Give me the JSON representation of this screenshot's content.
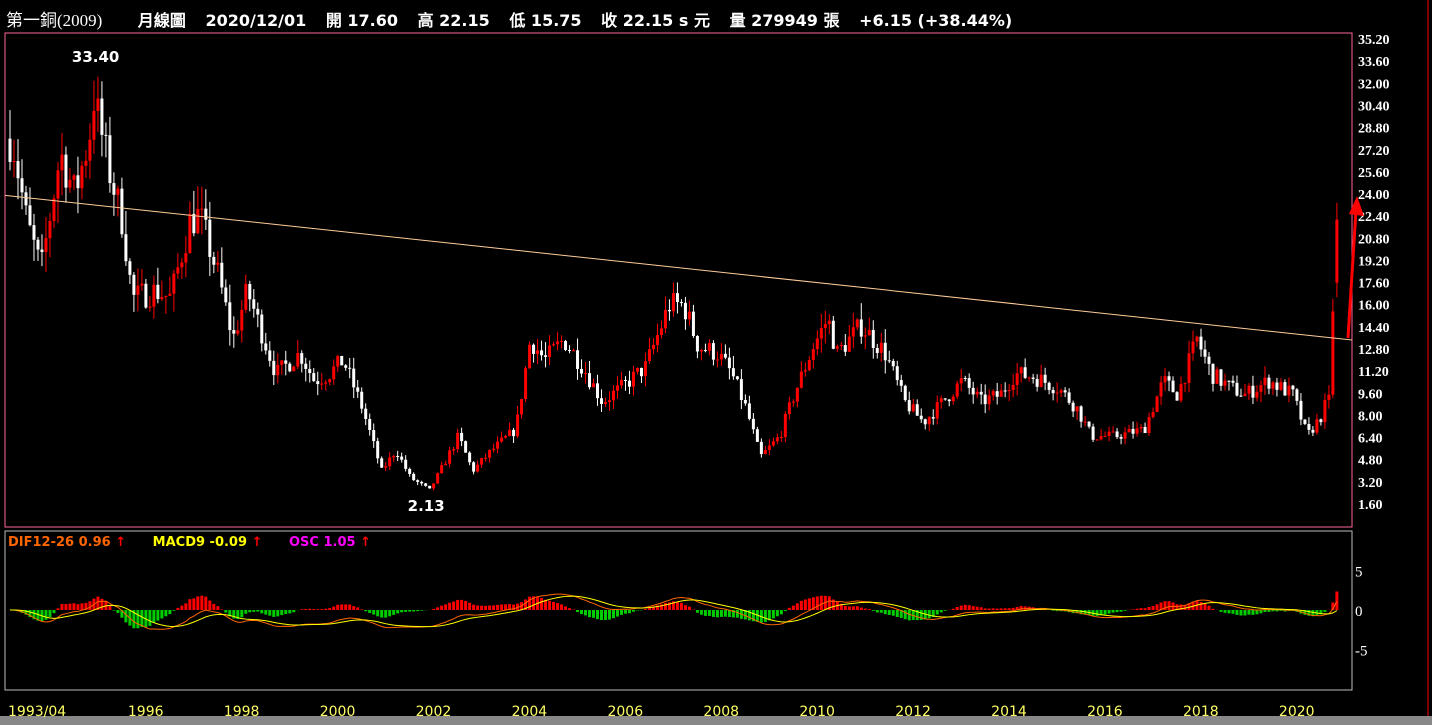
{
  "header": {
    "name": "第一銅(2009)",
    "period": "月線圖",
    "date": "2020/12/01",
    "open": "開 17.60",
    "high": "高 22.15",
    "low": "低 15.75",
    "close": "收 22.15 s 元",
    "volume": "量 279949 張",
    "change": "+6.15 (+38.44%)"
  },
  "macd_legend": {
    "dif": "DIF12-26 0.96",
    "macd": "MACD9 -0.09",
    "osc": "OSC 1.05",
    "arrow": "↑"
  },
  "colors": {
    "up": "#ff0000",
    "down": "#ffffff",
    "dif": "#ff6600",
    "macd": "#ffff00",
    "osc": "#ff00ff",
    "osc_pos": "#ff0000",
    "osc_neg": "#00cc00",
    "trendline": "#ffcc99",
    "frame": "#ff6699"
  },
  "chart_data": [
    {
      "type": "candlestick",
      "interval": "monthly",
      "x_start": "1993/04",
      "x_end": "2020/12",
      "x_tick_labels": [
        "1993/04",
        "1996",
        "1998",
        "2000",
        "2002",
        "2004",
        "2006",
        "2008",
        "2010",
        "2012",
        "2014",
        "2016",
        "2018",
        "2020"
      ],
      "y_tick_labels": [
        "35.20",
        "33.60",
        "32.00",
        "30.40",
        "28.80",
        "27.20",
        "25.60",
        "24.00",
        "22.40",
        "20.80",
        "19.20",
        "17.60",
        "16.00",
        "14.40",
        "12.80",
        "11.20",
        "9.60",
        "8.00",
        "6.40",
        "4.80",
        "3.20",
        "1.60"
      ],
      "ylim": [
        1.6,
        35.2
      ],
      "annotations": [
        {
          "label": "33.40",
          "date": "1995.0",
          "value": 33.4
        },
        {
          "label": "2.13",
          "date": "2002.0",
          "value": 2.13
        }
      ],
      "approx_close_path": [
        [
          1993.3,
          28
        ],
        [
          1993.6,
          22
        ],
        [
          1993.9,
          18.5
        ],
        [
          1994.3,
          27
        ],
        [
          1994.6,
          24
        ],
        [
          1994.9,
          28
        ],
        [
          1995.0,
          31
        ],
        [
          1995.3,
          26
        ],
        [
          1995.6,
          22
        ],
        [
          1995.8,
          16.5
        ],
        [
          1996.3,
          17
        ],
        [
          1996.6,
          16.5
        ],
        [
          1997.0,
          22
        ],
        [
          1997.2,
          22.5
        ],
        [
          1997.6,
          18
        ],
        [
          1997.9,
          13.5
        ],
        [
          1998.2,
          17
        ],
        [
          1998.5,
          14
        ],
        [
          1998.8,
          11
        ],
        [
          1999.3,
          12.5
        ],
        [
          1999.6,
          10.5
        ],
        [
          1999.9,
          11
        ],
        [
          2000.2,
          12
        ],
        [
          2000.6,
          8.5
        ],
        [
          2001.0,
          4
        ],
        [
          2001.3,
          5.5
        ],
        [
          2001.6,
          3.5
        ],
        [
          2002.0,
          2.6
        ],
        [
          2002.3,
          4.5
        ],
        [
          2002.6,
          6.5
        ],
        [
          2002.9,
          4
        ],
        [
          2003.3,
          5.5
        ],
        [
          2003.8,
          7
        ],
        [
          2004.1,
          13.5
        ],
        [
          2004.4,
          12
        ],
        [
          2004.8,
          13.5
        ],
        [
          2005.2,
          11.5
        ],
        [
          2005.6,
          9
        ],
        [
          2006.0,
          10
        ],
        [
          2006.5,
          11.5
        ],
        [
          2007.0,
          16
        ],
        [
          2007.3,
          16
        ],
        [
          2007.6,
          13
        ],
        [
          2008.0,
          12.5
        ],
        [
          2008.3,
          11
        ],
        [
          2008.6,
          8.5
        ],
        [
          2008.9,
          5
        ],
        [
          2009.3,
          6.5
        ],
        [
          2009.6,
          9.5
        ],
        [
          2010.0,
          13
        ],
        [
          2010.3,
          15
        ],
        [
          2010.5,
          12.5
        ],
        [
          2011.0,
          14.5
        ],
        [
          2011.5,
          12.5
        ],
        [
          2011.9,
          9
        ],
        [
          2012.3,
          7.5
        ],
        [
          2012.7,
          9
        ],
        [
          2013.1,
          10.5
        ],
        [
          2013.5,
          9
        ],
        [
          2013.9,
          9.5
        ],
        [
          2014.2,
          11
        ],
        [
          2014.6,
          10.8
        ],
        [
          2015.1,
          10
        ],
        [
          2015.5,
          8.5
        ],
        [
          2015.8,
          6.5
        ],
        [
          2016.3,
          6.5
        ],
        [
          2016.9,
          7
        ],
        [
          2017.3,
          10.5
        ],
        [
          2017.6,
          9.5
        ],
        [
          2018.0,
          13.5
        ],
        [
          2018.3,
          11
        ],
        [
          2018.7,
          10
        ],
        [
          2019.0,
          9.5
        ],
        [
          2019.5,
          10.5
        ],
        [
          2020.0,
          9.5
        ],
        [
          2020.3,
          6.5
        ],
        [
          2020.6,
          8
        ],
        [
          2020.75,
          9.5
        ],
        [
          2020.84,
          16
        ],
        [
          2020.92,
          22.15
        ]
      ],
      "trendline": {
        "from": [
          "1993/04",
          23.9
        ],
        "to": [
          "2020/12",
          13.45
        ]
      }
    },
    {
      "type": "macd",
      "y_tick_labels": [
        "5",
        "0",
        "-5"
      ],
      "ylim": [
        -10,
        10
      ],
      "series": [
        {
          "name": "DIF12-26"
        },
        {
          "name": "MACD9"
        },
        {
          "name": "OSC"
        }
      ],
      "last": {
        "dif": 0.96,
        "macd": -0.09,
        "osc": 1.05
      }
    }
  ]
}
